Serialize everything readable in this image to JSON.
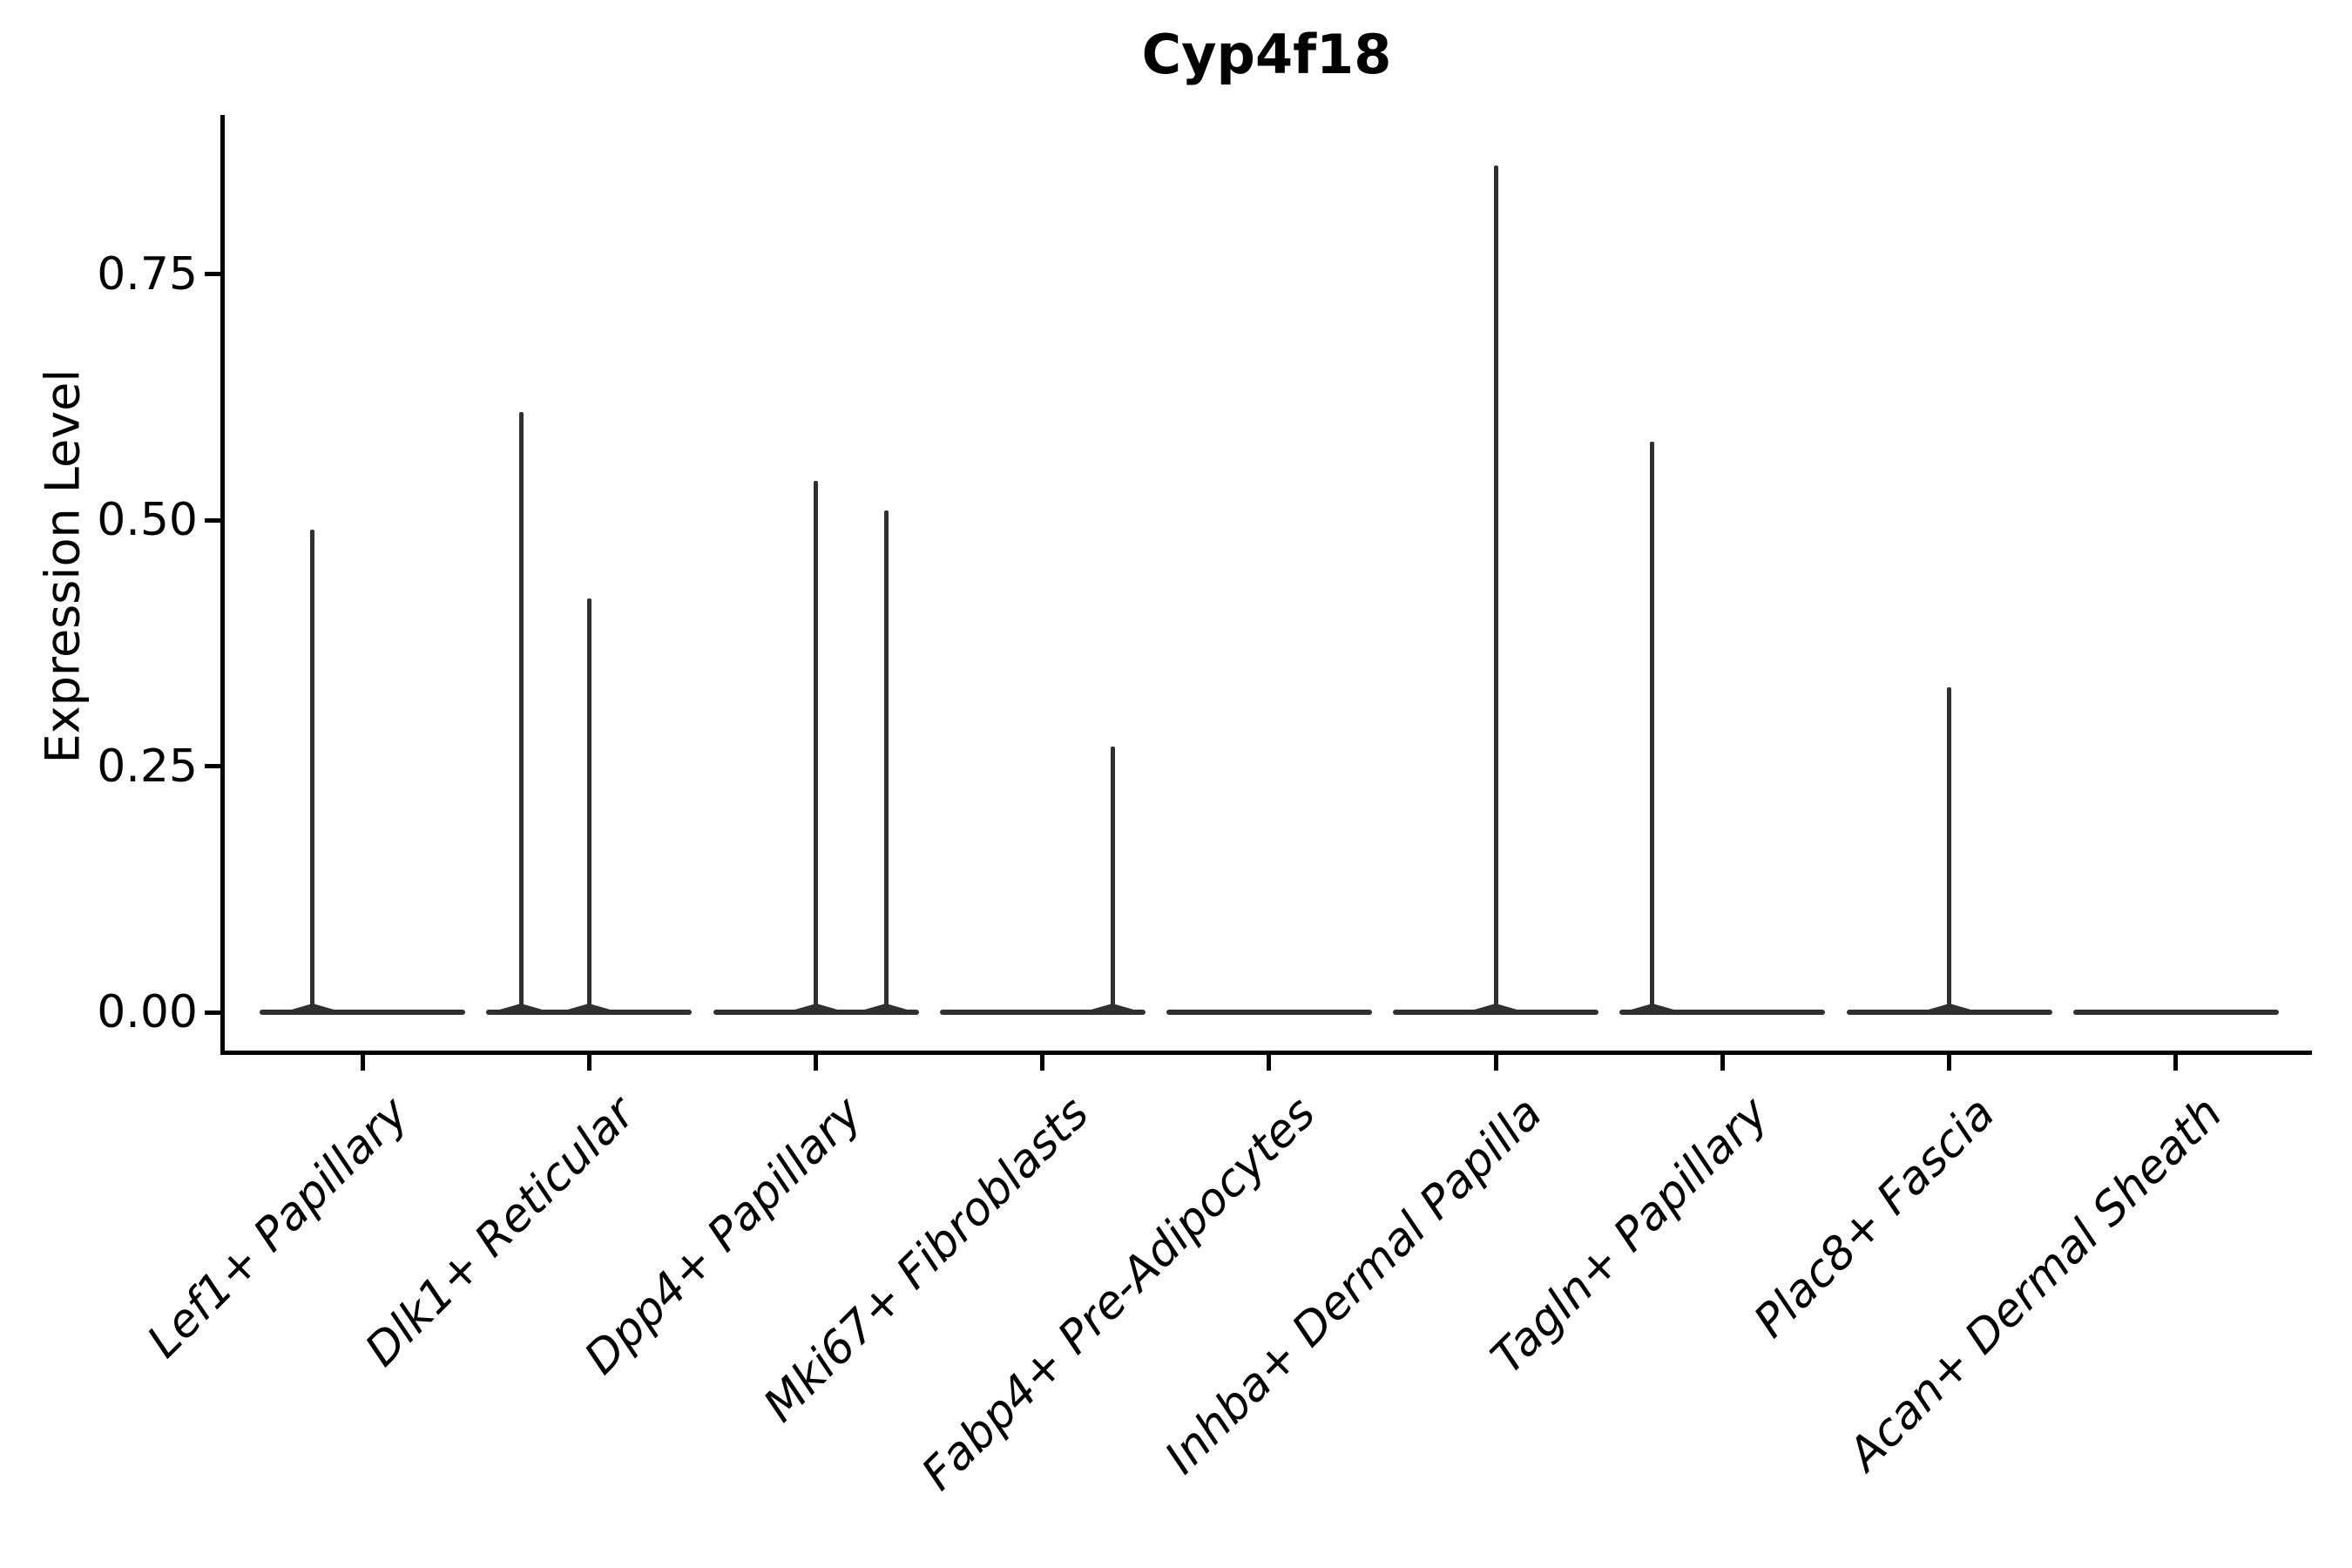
{
  "figure": {
    "title": "Cyp4f18",
    "background_color": "#ffffff",
    "axis_color": "#000000",
    "text_color": "#000000",
    "violin_color": "#303030"
  },
  "chart_data": {
    "type": "violin",
    "title": "Cyp4f18",
    "xlabel": "",
    "ylabel": "Expression Level",
    "categories": [
      "Lef1+ Papillary",
      "Dlk1+ Reticular",
      "Dpp4+ Papillary",
      "Mki67+ Fibroblasts",
      "Fabp4+ Pre-Adipocytes",
      "Inhba+ Dermal Papilla",
      "Tagln+ Papillary",
      "Plac8+ Fascia",
      "Acan+ Dermal Sheath"
    ],
    "ytick_values": [
      0.0,
      0.25,
      0.5,
      0.75
    ],
    "ytick_labels": [
      "0.00",
      "0.25",
      "0.50",
      "0.75"
    ],
    "ylim": [
      -0.04,
      0.91
    ],
    "grid": false,
    "legend": "none",
    "note": "Each cell type shows a flattened violin at expression 0 (most cells not expressing); thin spikes mark the density tail up to the max expression value. offset is the spike x-position as a fraction of category slot width.",
    "violins": [
      {
        "category": "Lef1+ Papillary",
        "body_value": 0,
        "spikes": [
          {
            "value": 0.49,
            "offset": -0.22
          }
        ]
      },
      {
        "category": "Dlk1+ Reticular",
        "body_value": 0,
        "spikes": [
          {
            "value": 0.61,
            "offset": -0.3
          },
          {
            "value": 0.42,
            "offset": 0
          }
        ]
      },
      {
        "category": "Dpp4+ Papillary",
        "body_value": 0,
        "spikes": [
          {
            "value": 0.54,
            "offset": 0
          },
          {
            "value": 0.51,
            "offset": 0.31
          }
        ]
      },
      {
        "category": "Mki67+ Fibroblasts",
        "body_value": 0,
        "spikes": [
          {
            "value": 0.27,
            "offset": 0.31
          }
        ]
      },
      {
        "category": "Fabp4+ Pre-Adipocytes",
        "body_value": 0,
        "spikes": []
      },
      {
        "category": "Inhba+ Dermal Papilla",
        "body_value": 0,
        "spikes": [
          {
            "value": 0.86,
            "offset": 0
          }
        ]
      },
      {
        "category": "Tagln+ Papillary",
        "body_value": 0,
        "spikes": [
          {
            "value": 0.58,
            "offset": -0.31
          }
        ]
      },
      {
        "category": "Plac8+ Fascia",
        "body_value": 0,
        "spikes": [
          {
            "value": 0.33,
            "offset": 0
          }
        ]
      },
      {
        "category": "Acan+ Dermal Sheath",
        "body_value": 0,
        "spikes": []
      }
    ]
  }
}
